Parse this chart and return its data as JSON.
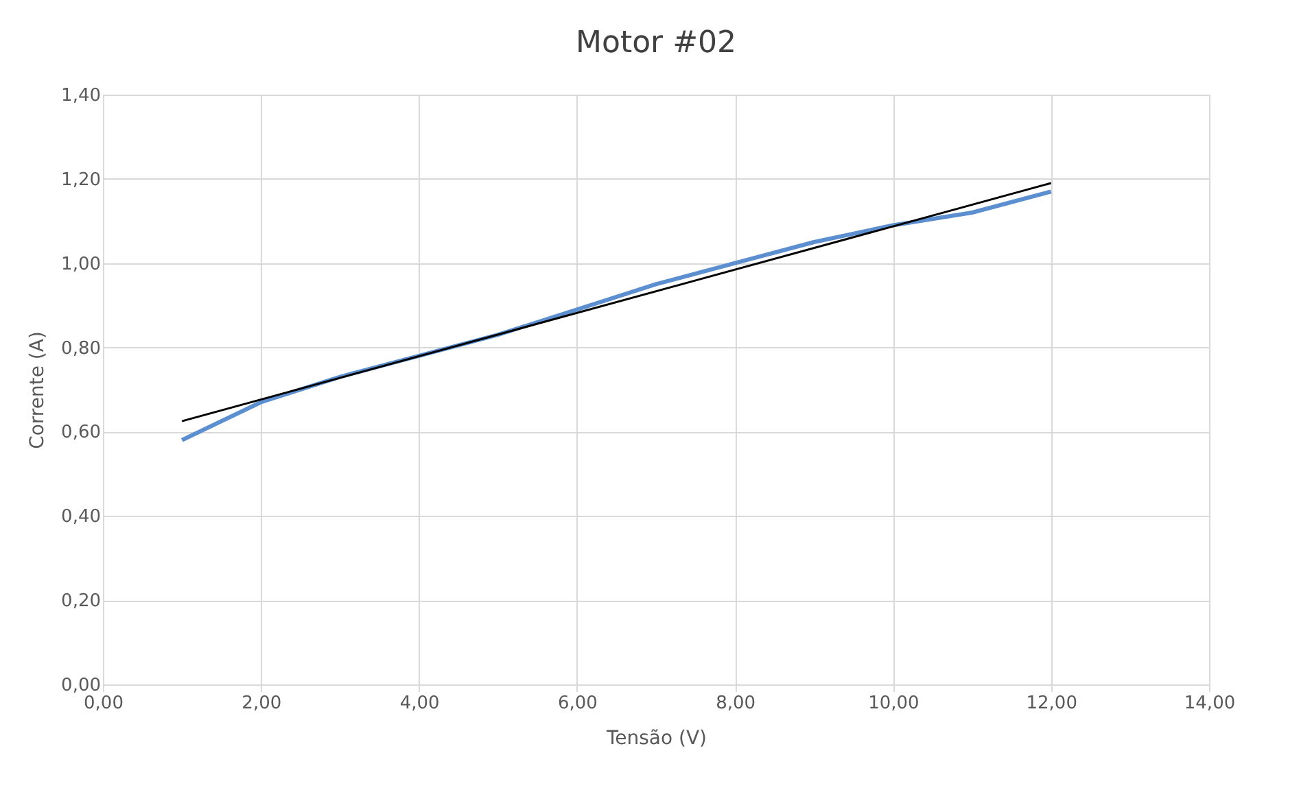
{
  "chart_data": {
    "type": "line",
    "title": "Motor #02",
    "xlabel": "Tensão (V)",
    "ylabel": "Corrente (A)",
    "x": [
      1,
      2,
      3,
      4,
      5,
      6,
      7,
      8,
      9,
      10,
      11,
      12
    ],
    "series": [
      {
        "color": "#5b8fd0",
        "values": [
          0.58,
          0.67,
          0.73,
          0.78,
          0.83,
          0.89,
          0.95,
          1.0,
          1.05,
          1.09,
          1.12,
          1.17
        ]
      },
      {
        "type": "line",
        "color": "#000000",
        "x": [
          1,
          12
        ],
        "values": [
          0.625,
          1.19
        ]
      }
    ],
    "xlim": [
      0,
      14
    ],
    "xticks": [
      {
        "value": 0,
        "label": "0,00"
      },
      {
        "value": 2,
        "label": "2,00"
      },
      {
        "value": 4,
        "label": "4,00"
      },
      {
        "value": 6,
        "label": "6,00"
      },
      {
        "value": 8,
        "label": "8,00"
      },
      {
        "value": 10,
        "label": "10,00"
      },
      {
        "value": 12,
        "label": "12,00"
      },
      {
        "value": 14,
        "label": "14,00"
      }
    ],
    "ylim": [
      0,
      1.4
    ],
    "yticks": [
      {
        "value": 0,
        "label": "0,00"
      },
      {
        "value": 0.2,
        "label": "0,20"
      },
      {
        "value": 0.4,
        "label": "0,40"
      },
      {
        "value": 0.6,
        "label": "0,60"
      },
      {
        "value": 0.8,
        "label": "0,80"
      },
      {
        "value": 1.0,
        "label": "1,00"
      },
      {
        "value": 1.2,
        "label": "1,20"
      },
      {
        "value": 1.4,
        "label": "1,40"
      }
    ],
    "grid": true,
    "marker": "none",
    "line_style": "solid"
  }
}
